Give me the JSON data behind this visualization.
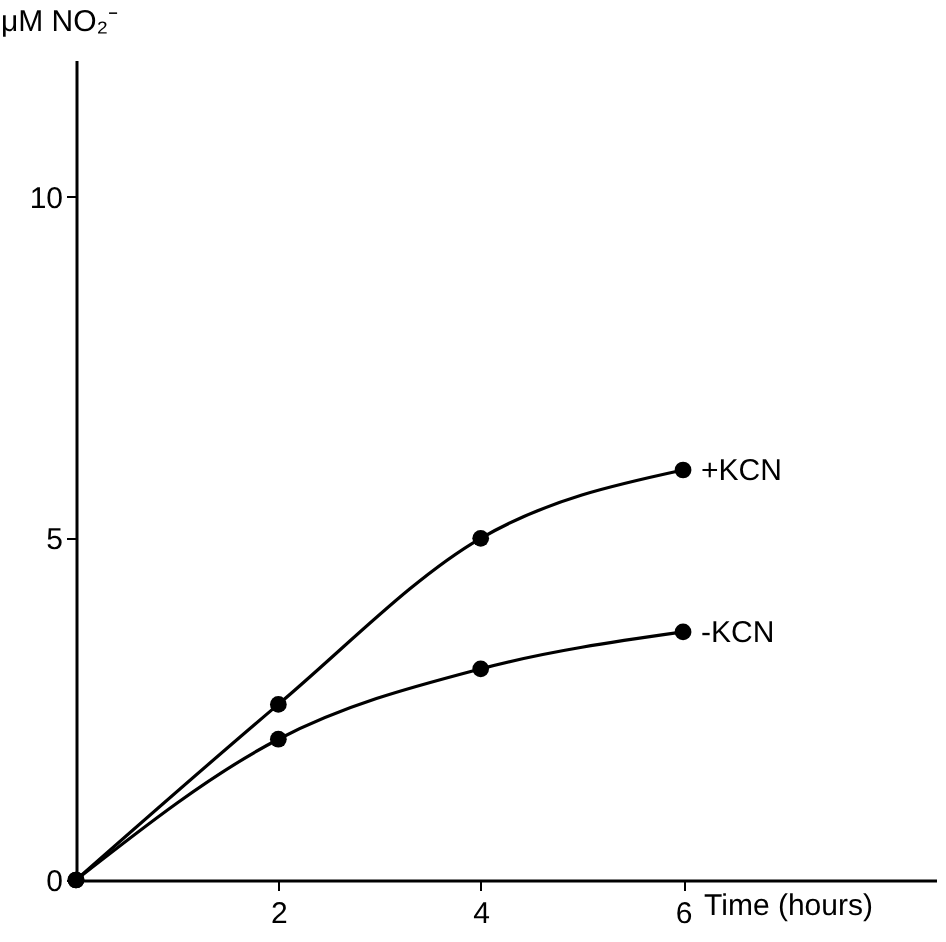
{
  "chart_data": {
    "type": "line",
    "xlabel": "Time (hours)",
    "ylabel": "μM NO₂⁻",
    "x": [
      0,
      2,
      4,
      6
    ],
    "series": [
      {
        "name": "+KCN",
        "color": "#000000",
        "values": [
          0,
          2.57,
          5.0,
          6.0
        ]
      },
      {
        "name": "-KCN",
        "color": "#000000",
        "values": [
          0,
          2.06,
          3.09,
          3.63
        ]
      }
    ],
    "xlim": [
      0,
      8.5
    ],
    "ylim": [
      0,
      12
    ],
    "xticks": [
      2,
      4,
      6
    ],
    "yticks": [
      0,
      5,
      10
    ],
    "marker": "circle",
    "line_style": "solid"
  }
}
